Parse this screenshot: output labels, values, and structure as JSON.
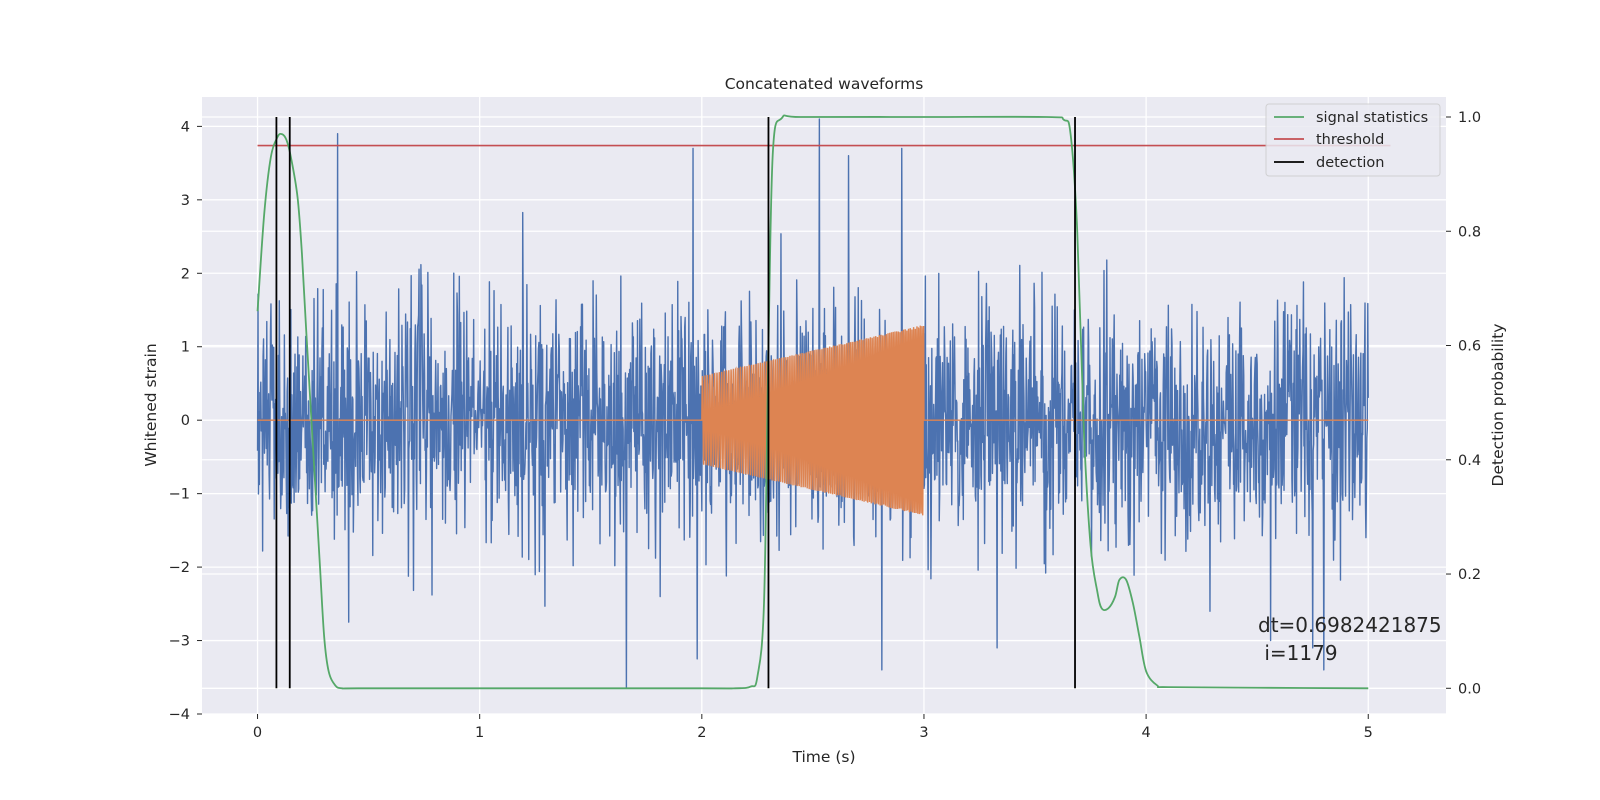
{
  "chart_data": {
    "type": "line",
    "title": "Concatenated waveforms",
    "xlabel": "Time (s)",
    "ylabel": "Whitened strain",
    "y2label": "Detection probability",
    "xlim": [
      -0.25,
      5.35
    ],
    "ylim": [
      -4.0,
      4.4
    ],
    "y2lim": [
      -0.045,
      1.035
    ],
    "x_ticks": [
      0,
      1,
      2,
      3,
      4,
      5
    ],
    "x_tick_labels": [
      "0",
      "1",
      "2",
      "3",
      "4",
      "5"
    ],
    "y_ticks": [
      4,
      3,
      2,
      1,
      0,
      -1,
      -2,
      -3,
      -4
    ],
    "y_tick_labels": [
      "4",
      "3",
      "2",
      "1",
      "0",
      "−1",
      "−2",
      "−3",
      "−4"
    ],
    "y2_ticks": [
      1.0,
      0.8,
      0.6,
      0.4,
      0.2,
      0.0
    ],
    "y2_tick_labels": [
      "1.0",
      "0.8",
      "0.6",
      "0.4",
      "0.2",
      "0.0"
    ],
    "grid": true,
    "legend_position": "top-right",
    "legend": [
      {
        "label": "signal statistics",
        "color": "#55a868"
      },
      {
        "label": "threshold",
        "color": "#c44e52"
      },
      {
        "label": "detection",
        "color": "#000000"
      }
    ],
    "series": [
      {
        "name": "noise",
        "axis": "left",
        "color": "#4c72b0",
        "x_range": [
          0,
          5
        ],
        "envelope_std": 0.8,
        "peak_points": [
          [
            0.36,
            3.9
          ],
          [
            1.96,
            3.7
          ],
          [
            2.53,
            4.1
          ],
          [
            2.66,
            3.6
          ],
          [
            2.9,
            3.7
          ],
          [
            1.66,
            -3.65
          ],
          [
            1.98,
            -3.25
          ],
          [
            2.81,
            -3.4
          ],
          [
            3.33,
            -3.1
          ],
          [
            4.56,
            -3.0
          ],
          [
            4.75,
            -3.1
          ],
          [
            4.8,
            -3.4
          ],
          [
            0.41,
            -2.75
          ]
        ]
      },
      {
        "name": "waveform",
        "axis": "left",
        "color": "#dd8452",
        "x": [
          0,
          2.0,
          3.0,
          5.0
        ],
        "flat_value": 0,
        "chirp": {
          "t_start": 2.0,
          "t_end": 3.0,
          "amp_start": 0.6,
          "amp_end": 1.3,
          "cycles": 90
        }
      },
      {
        "name": "signal statistics",
        "axis": "right",
        "color": "#55a868",
        "x": [
          0.0,
          0.03,
          0.06,
          0.09,
          0.11,
          0.13,
          0.15,
          0.18,
          0.2,
          0.22,
          0.25,
          0.28,
          0.3,
          0.32,
          0.35,
          0.38,
          0.45,
          1.0,
          2.0,
          2.15,
          2.22,
          2.25,
          2.28,
          2.3,
          2.32,
          2.36,
          2.45,
          3.0,
          3.55,
          3.63,
          3.66,
          3.69,
          3.72,
          3.75,
          3.78,
          3.8,
          3.83,
          3.86,
          3.88,
          3.91,
          3.94,
          3.97,
          4.0,
          4.05,
          4.1,
          4.5,
          5.0
        ],
        "y": [
          0.66,
          0.83,
          0.93,
          0.965,
          0.97,
          0.96,
          0.93,
          0.86,
          0.76,
          0.62,
          0.42,
          0.22,
          0.09,
          0.03,
          0.005,
          0.0,
          0.0,
          0.0,
          0.0,
          0.0,
          0.003,
          0.02,
          0.15,
          0.6,
          0.94,
          0.998,
          1.0,
          1.0,
          1.0,
          0.995,
          0.97,
          0.8,
          0.45,
          0.25,
          0.17,
          0.14,
          0.14,
          0.16,
          0.19,
          0.19,
          0.15,
          0.09,
          0.03,
          0.005,
          0.002,
          0.001,
          0.0
        ]
      },
      {
        "name": "threshold",
        "axis": "right",
        "color": "#c44e52",
        "x": [
          0,
          5.1
        ],
        "y": [
          0.95,
          0.95
        ]
      },
      {
        "name": "detection",
        "axis": "right",
        "color": "#000000",
        "vlines": [
          0.085,
          0.145,
          2.3,
          3.68
        ],
        "ymin": 0.0,
        "ymax": 1.0
      }
    ],
    "annotation": {
      "line1": "dt=0.6982421875",
      "line2": " i=1179"
    }
  }
}
